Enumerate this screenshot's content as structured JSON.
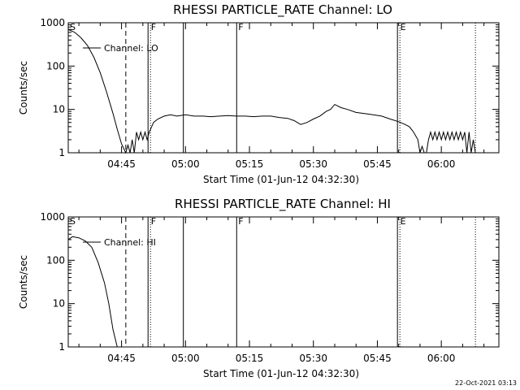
{
  "timestamp": "22-Oct-2021 03:13",
  "chart_data": [
    {
      "type": "line",
      "title": "RHESSI PARTICLE_RATE Channel: LO",
      "xlabel": "Start Time (01-Jun-12 04:32:30)",
      "ylabel": "Counts/sec",
      "yscale": "log",
      "ylim": [
        1,
        1000
      ],
      "xlim": [
        "04:32:30",
        "06:13:30"
      ],
      "x_ticks": [
        "04:45",
        "05:00",
        "05:15",
        "05:30",
        "05:45",
        "06:00"
      ],
      "y_ticks": [
        "1",
        "10",
        "100",
        "1000"
      ],
      "legend": "Channel: LO",
      "legend_placement": "top-left",
      "markers": [
        {
          "label": "S",
          "time": "04:32:30",
          "style": "solid"
        },
        {
          "label": "",
          "time": "04:46:00",
          "style": "dashed"
        },
        {
          "label": "F",
          "time": "04:51:30",
          "style": "solid-dotted"
        },
        {
          "label": "",
          "time": "04:59:30",
          "style": "solid"
        },
        {
          "label": "F",
          "time": "05:12:00",
          "style": "solid"
        },
        {
          "label": "E",
          "time": "05:50:00",
          "style": "solid-dotted"
        },
        {
          "label": "",
          "time": "06:08:00",
          "style": "dotted"
        }
      ],
      "series": [
        {
          "name": "Channel: LO",
          "x": [
            "04:32:30",
            "04:34:00",
            "04:35:30",
            "04:37:00",
            "04:38:30",
            "04:40:00",
            "04:41:30",
            "04:43:00",
            "04:44:00",
            "04:45:00",
            "04:46:00",
            "04:46:30",
            "04:47:00",
            "04:47:30",
            "04:48:00",
            "04:48:30",
            "04:49:00",
            "04:49:30",
            "04:50:00",
            "04:50:30",
            "04:51:00",
            "04:51:30",
            "04:52:30",
            "04:53:30",
            "04:55:00",
            "04:56:30",
            "04:58:00",
            "05:00:00",
            "05:02:00",
            "05:04:00",
            "05:06:00",
            "05:08:00",
            "05:10:00",
            "05:12:00",
            "05:14:00",
            "05:16:00",
            "05:18:00",
            "05:20:00",
            "05:22:00",
            "05:24:00",
            "05:25:30",
            "05:27:00",
            "05:28:30",
            "05:30:00",
            "05:31:30",
            "05:33:00",
            "05:34:00",
            "05:35:00",
            "05:36:30",
            "05:38:00",
            "05:40:00",
            "05:42:00",
            "05:44:00",
            "05:46:00",
            "05:48:00",
            "05:50:00",
            "05:51:30",
            "05:52:30",
            "05:53:30",
            "05:54:30",
            "05:55:00",
            "05:55:30",
            "05:56:00",
            "05:56:30",
            "05:57:00",
            "05:57:30",
            "05:58:00",
            "05:58:30",
            "05:59:00",
            "05:59:30",
            "06:00:00",
            "06:00:30",
            "06:01:00",
            "06:01:30",
            "06:02:00",
            "06:02:30",
            "06:03:00",
            "06:03:30",
            "06:04:00",
            "06:04:30",
            "06:05:00",
            "06:05:30",
            "06:06:00",
            "06:06:30",
            "06:07:00",
            "06:07:30",
            "06:08:00"
          ],
          "y": [
            700,
            600,
            450,
            300,
            160,
            70,
            25,
            8,
            3.5,
            1.6,
            1,
            1.5,
            1,
            2,
            1,
            3,
            2,
            3,
            2,
            3,
            2,
            3,
            5,
            6,
            7,
            7.5,
            7,
            7.5,
            7,
            7,
            6.8,
            7,
            7.2,
            7,
            7,
            6.8,
            7,
            7,
            6.5,
            6.2,
            5.5,
            4.5,
            5,
            6,
            7,
            9,
            10,
            13,
            11,
            10,
            8.5,
            8,
            7.5,
            7,
            6,
            5.2,
            4.5,
            4,
            3,
            2,
            1,
            1.4,
            1,
            1,
            2,
            3,
            2,
            3,
            2,
            3,
            2,
            3,
            2,
            3,
            2,
            3,
            2,
            3,
            2,
            3,
            2,
            3,
            1,
            3,
            1,
            2,
            1
          ]
        }
      ]
    },
    {
      "type": "line",
      "title": "RHESSI PARTICLE_RATE Channel: HI",
      "xlabel": "Start Time (01-Jun-12 04:32:30)",
      "ylabel": "Counts/sec",
      "yscale": "log",
      "ylim": [
        1,
        1000
      ],
      "xlim": [
        "04:32:30",
        "06:13:30"
      ],
      "x_ticks": [
        "04:45",
        "05:00",
        "05:15",
        "05:30",
        "05:45",
        "06:00"
      ],
      "y_ticks": [
        "1",
        "10",
        "100",
        "1000"
      ],
      "legend": "Channel: HI",
      "legend_placement": "top-left",
      "markers": [
        {
          "label": "S",
          "time": "04:32:30",
          "style": "solid"
        },
        {
          "label": "",
          "time": "04:46:00",
          "style": "dashed"
        },
        {
          "label": "F",
          "time": "04:51:30",
          "style": "solid-dotted"
        },
        {
          "label": "",
          "time": "04:59:30",
          "style": "solid"
        },
        {
          "label": "F",
          "time": "05:12:00",
          "style": "solid"
        },
        {
          "label": "E",
          "time": "05:50:00",
          "style": "solid-dotted"
        },
        {
          "label": "",
          "time": "06:08:00",
          "style": "dotted"
        }
      ],
      "series": [
        {
          "name": "Channel: HI",
          "x": [
            "04:32:30",
            "04:33:30",
            "04:35:00",
            "04:36:30",
            "04:38:00",
            "04:39:30",
            "04:41:00",
            "04:42:00",
            "04:43:00",
            "04:44:00"
          ],
          "y": [
            300,
            350,
            330,
            280,
            200,
            90,
            30,
            10,
            2.5,
            1
          ]
        }
      ]
    }
  ]
}
